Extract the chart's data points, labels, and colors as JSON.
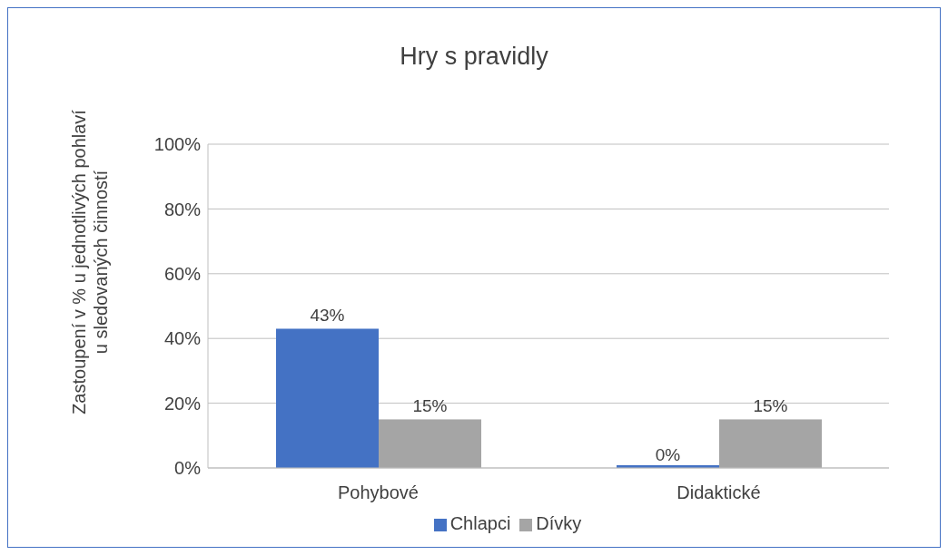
{
  "chart_data": {
    "type": "bar",
    "title": "Hry s pravidly",
    "ylabel": "Zastoupení  v % u jednotlivých pohlaví\nu sledovaných činností",
    "categories": [
      "Pohybové",
      "Didaktické"
    ],
    "series": [
      {
        "name": "Chlapci",
        "color": "#4472c4",
        "values": [
          43,
          0
        ],
        "value_labels": [
          "43%",
          "0%"
        ]
      },
      {
        "name": "Dívky",
        "color": "#a5a5a5",
        "values": [
          15,
          15
        ],
        "value_labels": [
          "15%",
          "15%"
        ]
      }
    ],
    "ylim": [
      0,
      100
    ],
    "yticks": [
      {
        "value": 0,
        "label": "0%"
      },
      {
        "value": 20,
        "label": "20%"
      },
      {
        "value": 40,
        "label": "40%"
      },
      {
        "value": 60,
        "label": "60%"
      },
      {
        "value": 80,
        "label": "80%"
      },
      {
        "value": 100,
        "label": "100%"
      }
    ],
    "grid": "y",
    "legend": "bottom"
  }
}
